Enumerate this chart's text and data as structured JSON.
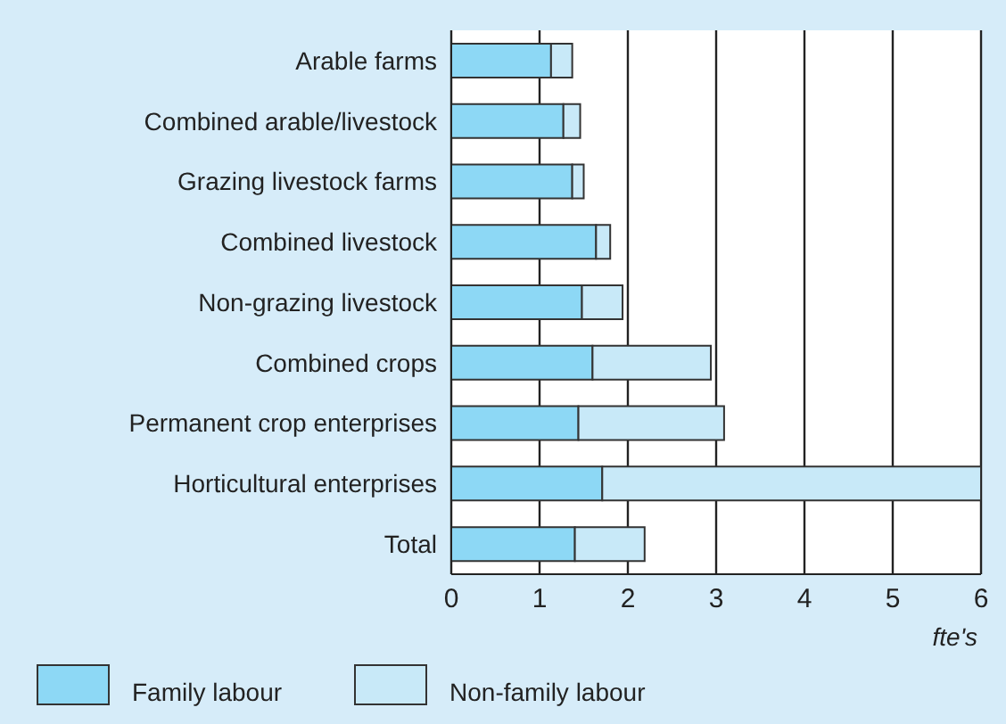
{
  "chart_data": {
    "type": "bar",
    "orientation": "horizontal",
    "stacked": true,
    "xlabel": "fte's",
    "categories": [
      "Arable farms",
      "Combined arable/livestock",
      "Grazing livestock farms",
      "Combined livestock",
      "Non-grazing livestock",
      "Combined crops",
      "Permanent crop enterprises",
      "Horticultural enterprises",
      "Total"
    ],
    "series": [
      {
        "name": "Family labour",
        "color": "#8dd8f5",
        "values": [
          1.13,
          1.27,
          1.37,
          1.64,
          1.48,
          1.6,
          1.44,
          1.71,
          1.4
        ]
      },
      {
        "name": "Non-family labour",
        "color": "#c8e9f8",
        "values": [
          0.24,
          0.19,
          0.13,
          0.16,
          0.46,
          1.34,
          1.65,
          4.29,
          0.79
        ]
      }
    ],
    "xlim": [
      0,
      6
    ],
    "xticks": [
      0,
      1,
      2,
      3,
      4,
      5,
      6
    ],
    "grid": "x",
    "legend": "bottom"
  }
}
